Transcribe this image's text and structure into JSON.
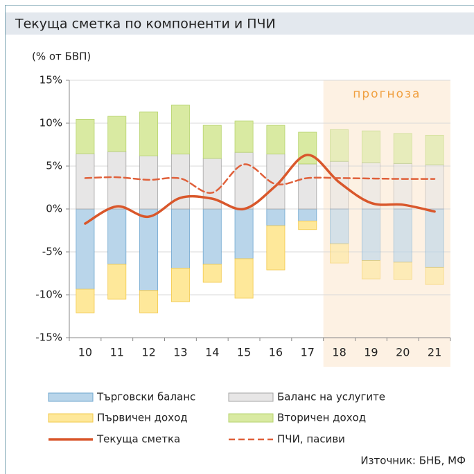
{
  "chart_data": {
    "type": "bar",
    "title": "Текуща сметка по компоненти и ПЧИ",
    "unit_label": "(% от БВП)",
    "source": "Източник: БНБ, МФ",
    "forecast_label": "прогноза",
    "forecast_from": "18",
    "categories": [
      "10",
      "11",
      "12",
      "13",
      "14",
      "15",
      "16",
      "17",
      "18",
      "19",
      "20",
      "21"
    ],
    "ylim": [
      -15,
      15
    ],
    "yticks": [
      {
        "value": -15,
        "label": "-15%"
      },
      {
        "value": -10,
        "label": "-10%"
      },
      {
        "value": -5,
        "label": "-5%"
      },
      {
        "value": 0,
        "label": "0%"
      },
      {
        "value": 5,
        "label": "5%"
      },
      {
        "value": 10,
        "label": "10%"
      },
      {
        "value": 15,
        "label": "15%"
      }
    ],
    "series": [
      {
        "name": "Търговски баланс",
        "type": "bar",
        "color": "#b9d5ea",
        "border": "#6fa6cf",
        "values": [
          -9.35,
          -6.45,
          -9.5,
          -6.9,
          -6.45,
          -5.8,
          -1.95,
          -1.4,
          -4.05,
          -6.0,
          -6.2,
          -6.8
        ]
      },
      {
        "name": "Баланс на услугите",
        "type": "bar",
        "color": "#e7e6e6",
        "border": "#a6a6a6",
        "values": [
          6.45,
          6.7,
          6.2,
          6.4,
          5.9,
          6.6,
          6.4,
          5.25,
          5.55,
          5.4,
          5.3,
          5.15
        ]
      },
      {
        "name": "Първичен доход",
        "type": "bar",
        "color": "#fee89a",
        "border": "#f2c84a",
        "values": [
          -2.75,
          -4.05,
          -2.6,
          -3.9,
          -2.1,
          -4.6,
          -5.15,
          -1.0,
          -2.25,
          -2.15,
          -2.0,
          -2.0
        ]
      },
      {
        "name": "Вторичен доход",
        "type": "bar",
        "color": "#d9eaa2",
        "border": "#b6d36c",
        "values": [
          4.0,
          4.1,
          5.1,
          5.7,
          3.85,
          3.65,
          3.35,
          3.7,
          3.7,
          3.7,
          3.5,
          3.45
        ]
      },
      {
        "name": "Текуща сметка",
        "type": "line",
        "color": "#d9572b",
        "dashed": false,
        "values": [
          -1.7,
          0.3,
          -0.9,
          1.3,
          1.2,
          0.0,
          2.7,
          6.3,
          3.1,
          0.7,
          0.5,
          -0.3
        ]
      },
      {
        "name": "ПЧИ, пасиви",
        "type": "line",
        "color": "#e0603a",
        "dashed": true,
        "values": [
          3.6,
          3.7,
          3.4,
          3.55,
          1.9,
          5.2,
          2.9,
          3.6,
          3.6,
          3.55,
          3.5,
          3.5
        ]
      }
    ]
  }
}
